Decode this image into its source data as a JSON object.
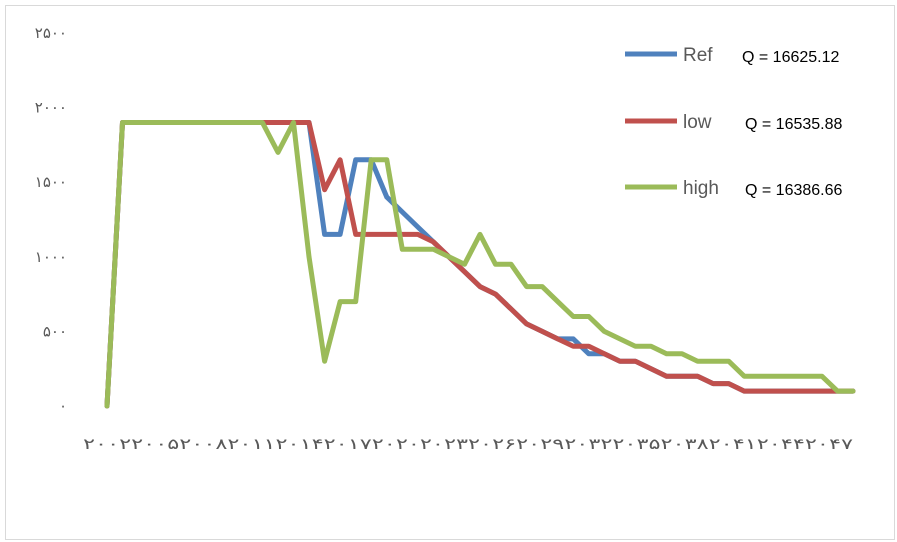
{
  "chart_data": {
    "type": "line",
    "ylim": [
      0,
      2500
    ],
    "yticks": [
      0,
      500,
      1000,
      1500,
      2000,
      2500
    ],
    "ytick_labels": [
      "۰",
      "۵۰۰",
      "۱۰۰۰",
      "۱۵۰۰",
      "۲۰۰۰",
      "۲۵۰۰"
    ],
    "x_axis_label_text": "۲۰۰۲۲۰۰۵۲۰۰۸۲۰۱۱۲۰۱۴۲۰۱۷۲۰۲۰۲۰۲۳۲۰۲۶۲۰۲۹۲۰۳۲۲۰۳۵۲۰۳۸۲۰۴۱۲۰۴۴۲۰۴۷",
    "x": [
      2002,
      2003,
      2004,
      2005,
      2006,
      2007,
      2008,
      2009,
      2010,
      2011,
      2012,
      2013,
      2014,
      2015,
      2016,
      2017,
      2018,
      2019,
      2020,
      2021,
      2022,
      2023,
      2024,
      2025,
      2026,
      2027,
      2028,
      2029,
      2030,
      2031,
      2032,
      2033,
      2034,
      2035,
      2036,
      2037,
      2038,
      2039,
      2040,
      2041,
      2042,
      2043,
      2044,
      2045,
      2046,
      2047,
      2048,
      2049,
      2050
    ],
    "grid": false,
    "legend_position": "top-right",
    "series": [
      {
        "name": "Ref",
        "q_label": "Q = 16625.12",
        "color": "#4f81bd",
        "values": [
          0,
          1900,
          1900,
          1900,
          1900,
          1900,
          1900,
          1900,
          1900,
          1900,
          1900,
          1900,
          1900,
          1900,
          1150,
          1150,
          1650,
          1650,
          1400,
          1300,
          1200,
          1100,
          1000,
          900,
          800,
          750,
          650,
          550,
          500,
          450,
          450,
          350,
          350,
          300,
          300,
          250,
          200,
          200,
          200,
          150,
          150,
          100,
          100,
          100,
          100,
          100,
          100,
          100,
          100
        ]
      },
      {
        "name": "low",
        "q_label": "Q = 16535.88",
        "color": "#c0504d",
        "values": [
          0,
          1900,
          1900,
          1900,
          1900,
          1900,
          1900,
          1900,
          1900,
          1900,
          1900,
          1900,
          1900,
          1900,
          1450,
          1650,
          1150,
          1150,
          1150,
          1150,
          1150,
          1100,
          1000,
          900,
          800,
          750,
          650,
          550,
          500,
          450,
          400,
          400,
          350,
          300,
          300,
          250,
          200,
          200,
          200,
          150,
          150,
          100,
          100,
          100,
          100,
          100,
          100,
          100,
          100
        ]
      },
      {
        "name": "high",
        "q_label": "Q = 16386.66",
        "color": "#9bbb59",
        "values": [
          0,
          1900,
          1900,
          1900,
          1900,
          1900,
          1900,
          1900,
          1900,
          1900,
          1900,
          1700,
          1900,
          1000,
          300,
          700,
          700,
          1650,
          1650,
          1050,
          1050,
          1050,
          1000,
          950,
          1150,
          950,
          950,
          800,
          800,
          700,
          600,
          600,
          500,
          450,
          400,
          400,
          350,
          350,
          300,
          300,
          300,
          200,
          200,
          200,
          200,
          200,
          200,
          100,
          100
        ]
      }
    ]
  }
}
